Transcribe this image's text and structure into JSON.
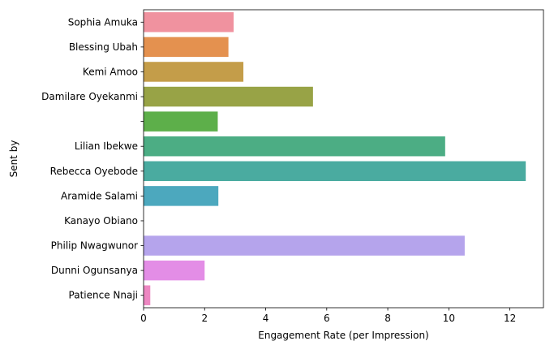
{
  "chart_data": {
    "type": "bar",
    "orientation": "horizontal",
    "title": "",
    "xlabel": "Engagement Rate (per Impression)",
    "ylabel": "Sent by",
    "xlim": [
      0,
      13.1
    ],
    "xticks": [
      0,
      2,
      4,
      6,
      8,
      10,
      12
    ],
    "grid": false,
    "legend": "none",
    "categories": [
      "Sophia Amuka",
      "Blessing Ubah",
      "Kemi Amoo",
      "Damilare Oyekanmi",
      "",
      "Lilian Ibekwe",
      "Rebecca Oyebode",
      "Aramide Salami",
      "Kanayo Obiano",
      "Philip Nwagwunor",
      "Dunni Ogunsanya",
      "Patience Nnaji"
    ],
    "values": [
      2.95,
      2.78,
      3.27,
      5.55,
      2.43,
      9.88,
      12.52,
      2.45,
      0.0,
      10.52,
      2.0,
      0.22
    ],
    "colors": [
      "#f0929f",
      "#e4914f",
      "#c49d49",
      "#98a346",
      "#5daf4a",
      "#4cad84",
      "#4aaba0",
      "#4ca8be",
      "#72a7e6",
      "#b5a4ec",
      "#e38de6",
      "#ed87c2"
    ]
  }
}
